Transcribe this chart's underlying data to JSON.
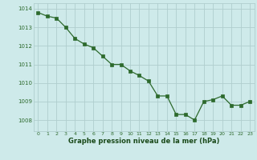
{
  "x": [
    0,
    1,
    2,
    3,
    4,
    5,
    6,
    7,
    8,
    9,
    10,
    11,
    12,
    13,
    14,
    15,
    16,
    17,
    18,
    19,
    20,
    21,
    22,
    23
  ],
  "y": [
    1013.8,
    1013.6,
    1013.5,
    1013.0,
    1012.4,
    1012.1,
    1011.9,
    1011.45,
    1011.0,
    1011.0,
    1010.65,
    1010.4,
    1010.1,
    1009.3,
    1009.3,
    1008.3,
    1008.3,
    1008.0,
    1009.0,
    1009.1,
    1009.3,
    1008.8,
    1008.8,
    1009.0
  ],
  "line_color": "#2d6a2d",
  "marker_color": "#2d6a2d",
  "bg_color": "#ceeaea",
  "grid_color": "#b0cece",
  "xlabel": "Graphe pression niveau de la mer (hPa)",
  "xlabel_color": "#1a4a1a",
  "tick_color": "#2d6a2d",
  "ylim": [
    1007.4,
    1014.3
  ],
  "yticks": [
    1008,
    1009,
    1010,
    1011,
    1012,
    1013,
    1014
  ],
  "xticks": [
    0,
    1,
    2,
    3,
    4,
    5,
    6,
    7,
    8,
    9,
    10,
    11,
    12,
    13,
    14,
    15,
    16,
    17,
    18,
    19,
    20,
    21,
    22,
    23
  ],
  "xlim": [
    -0.5,
    23.5
  ]
}
